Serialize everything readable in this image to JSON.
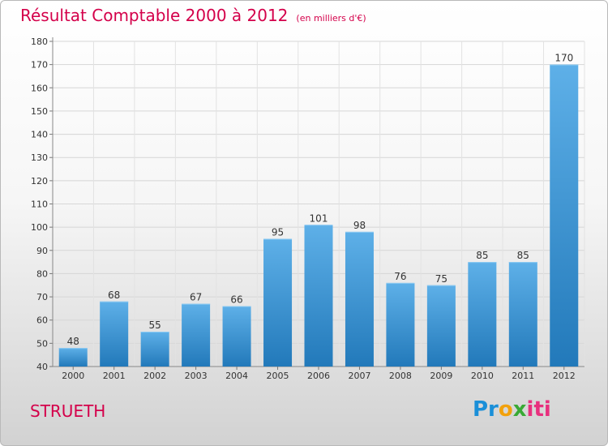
{
  "header": {
    "title": "Résultat Comptable 2000 à 2012",
    "subtitle": "(en milliers d'€)"
  },
  "footer": {
    "commune": "STRUETH",
    "logo_text": "Proxiti",
    "logo_parts": [
      "Pr",
      "o",
      "x",
      "iti"
    ]
  },
  "colors": {
    "title": "#d4004a",
    "bar_top": "#5eb0e8",
    "bar_bottom": "#2279ba"
  },
  "chart_data": {
    "type": "bar",
    "title": "Résultat Comptable 2000 à 2012",
    "xlabel": "",
    "ylabel": "",
    "categories": [
      "2000",
      "2001",
      "2002",
      "2003",
      "2004",
      "2005",
      "2006",
      "2007",
      "2008",
      "2009",
      "2010",
      "2011",
      "2012"
    ],
    "values": [
      48,
      68,
      55,
      67,
      66,
      95,
      101,
      98,
      76,
      75,
      85,
      85,
      170
    ],
    "ylim": [
      40,
      180
    ],
    "yticks": [
      40,
      50,
      60,
      70,
      80,
      90,
      100,
      110,
      120,
      130,
      140,
      150,
      160,
      170,
      180
    ],
    "grid": true,
    "legend": "none"
  }
}
